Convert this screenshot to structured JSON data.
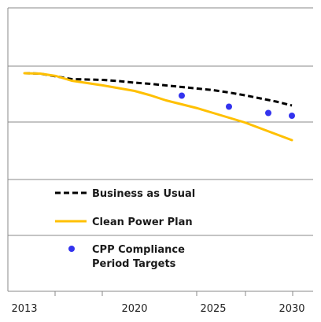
{
  "chart_data": {
    "type": "line",
    "title": "",
    "xlabel": "",
    "ylabel": "",
    "x_ticks": [
      2013,
      2020,
      2025,
      2030
    ],
    "xlim": [
      2013,
      2030.2
    ],
    "grid": "horizontal",
    "y_axis_labels_shown": false,
    "legend_position": "lower-left",
    "series": [
      {
        "name": "Business as Usual",
        "style": "dashed",
        "color": "#000000",
        "points": [
          [
            2013,
            62
          ],
          [
            2014,
            61.5
          ],
          [
            2015,
            58
          ],
          [
            2016,
            54.5
          ],
          [
            2017,
            54
          ],
          [
            2018,
            53.5
          ],
          [
            2019,
            52
          ],
          [
            2020,
            50
          ],
          [
            2021,
            48.5
          ],
          [
            2022,
            46.5
          ],
          [
            2023,
            44.5
          ],
          [
            2024,
            42.5
          ],
          [
            2025,
            40.5
          ],
          [
            2026,
            37.5
          ],
          [
            2027,
            34
          ],
          [
            2028,
            30
          ],
          [
            2029,
            26
          ],
          [
            2030,
            21
          ]
        ]
      },
      {
        "name": "Clean Power Plan",
        "style": "solid",
        "color": "#FFC000",
        "points": [
          [
            2013,
            62
          ],
          [
            2014,
            61.5
          ],
          [
            2015,
            58.5
          ],
          [
            2016,
            52.5
          ],
          [
            2017,
            49.5
          ],
          [
            2018,
            46.5
          ],
          [
            2019,
            43
          ],
          [
            2020,
            39.5
          ],
          [
            2021,
            34
          ],
          [
            2022,
            27.5
          ],
          [
            2023,
            22.5
          ],
          [
            2024,
            17.5
          ],
          [
            2025,
            11.5
          ],
          [
            2026,
            5.5
          ],
          [
            2027,
            -0.5
          ],
          [
            2028,
            -8
          ],
          [
            2029,
            -15.5
          ],
          [
            2030,
            -23
          ]
        ]
      },
      {
        "name": "CPP Compliance Period Targets",
        "style": "markers",
        "color": "#3333EE",
        "points": [
          [
            2023,
            33.5
          ],
          [
            2026,
            19.5
          ],
          [
            2028.5,
            11.5
          ],
          [
            2030,
            8
          ]
        ]
      }
    ]
  },
  "legend": {
    "items": [
      {
        "lines": [
          "Business as Usual"
        ],
        "style": "dashed"
      },
      {
        "lines": [
          "Clean Power Plan"
        ],
        "style": "solid"
      },
      {
        "lines": [
          "CPP Compliance",
          "Period Targets"
        ],
        "style": "marker"
      }
    ]
  },
  "colors": {
    "axis": "#888888",
    "grid": "#888888",
    "bau": "#000000",
    "cpp": "#FFC000",
    "targets": "#3333EE"
  }
}
